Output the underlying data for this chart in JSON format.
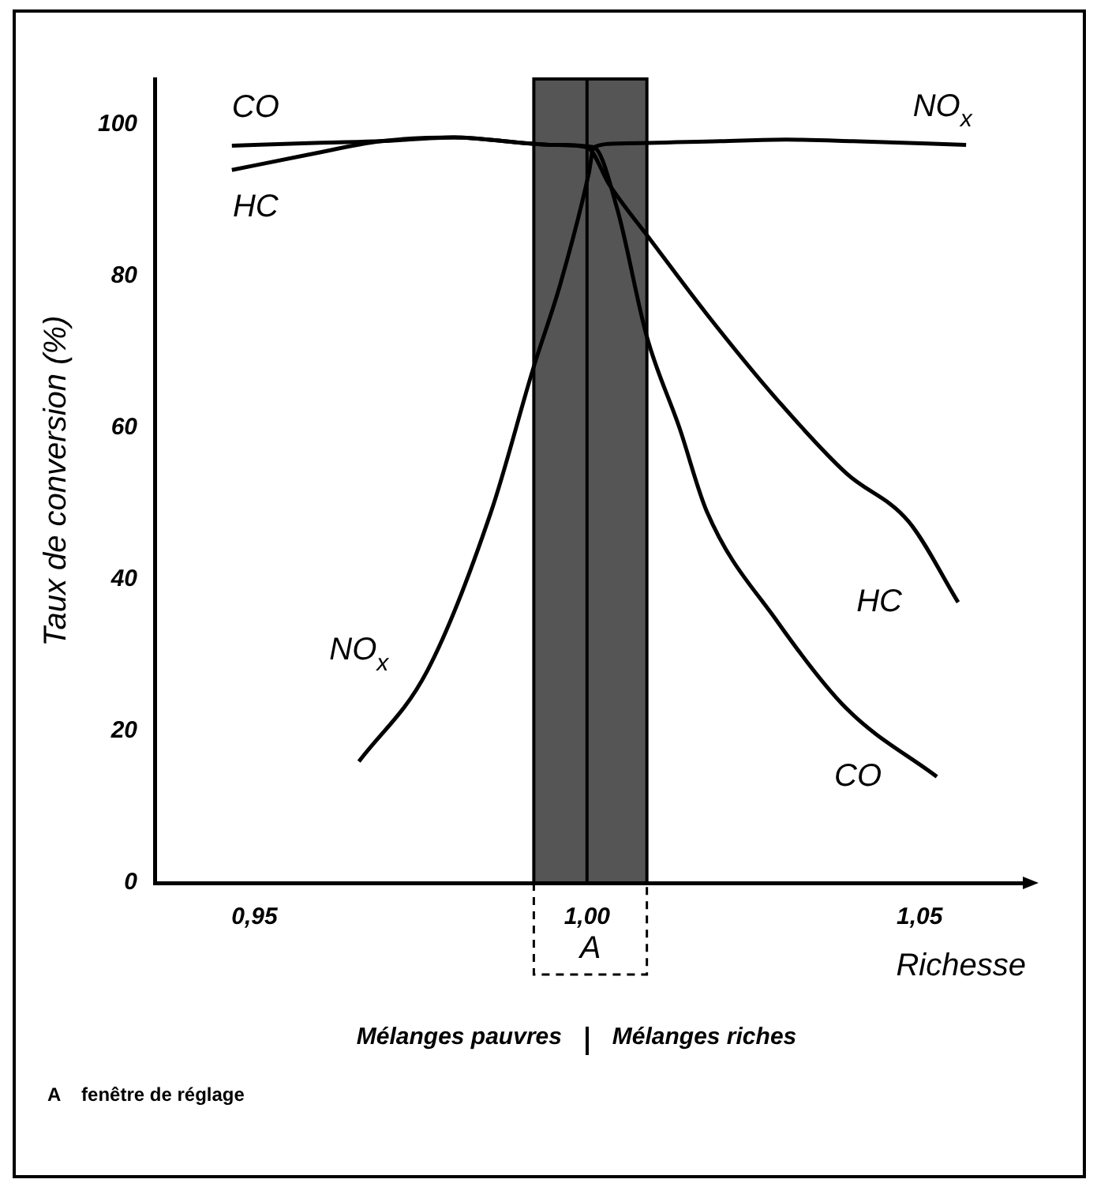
{
  "chart_data": {
    "type": "line",
    "xlabel": "Richesse",
    "ylabel": "Taux de conversion (%)",
    "xlim": [
      0.935,
      1.066
    ],
    "ylim": [
      0,
      106
    ],
    "xticks": [
      {
        "value": 0.95,
        "label": "0,95"
      },
      {
        "value": 1.0,
        "label": "1,00"
      },
      {
        "value": 1.05,
        "label": "1,05"
      }
    ],
    "yticks": [
      0,
      20,
      40,
      60,
      80,
      100
    ],
    "grid": false,
    "legend": false,
    "marker": "none",
    "line_style": "solid",
    "series": [
      {
        "name": "CO",
        "color": "#000000",
        "x": [
          0.9466,
          0.96,
          0.969,
          0.98,
          0.99,
          0.995,
          1.001,
          1.0045,
          1.009,
          1.0139,
          1.018,
          1.0285,
          1.039,
          1.0526
        ],
        "values": [
          97.2,
          97.6,
          97.8,
          98.3,
          97.6,
          97.3,
          97,
          89,
          72,
          60,
          49,
          34.6,
          23,
          14
        ]
      },
      {
        "name": "HC",
        "color": "#000000",
        "x": [
          0.9466,
          0.958,
          0.969,
          0.98,
          0.99,
          0.995,
          1.0,
          1.0034,
          1.0097,
          1.018,
          1.0285,
          1.039,
          1.0484,
          1.0558
        ],
        "values": [
          94,
          96,
          97.8,
          98.3,
          97.6,
          97.3,
          97,
          92,
          84.6,
          75,
          63.8,
          54,
          47.6,
          37
        ]
      },
      {
        "name": "NO$_{x}$",
        "color": "#000000",
        "x": [
          0.9657,
          0.976,
          0.9856,
          0.9919,
          0.996,
          1.0003,
          1.001,
          1.005,
          1.02,
          1.03,
          1.04,
          1.057
        ],
        "values": [
          16,
          28,
          49,
          67.8,
          79,
          93.7,
          97,
          97.5,
          97.8,
          98,
          97.8,
          97.3
        ]
      }
    ],
    "bands": [
      {
        "axis": "x",
        "from": 0.992,
        "to": 1.009,
        "label": "A",
        "color": "#555555"
      }
    ],
    "ref_lines": [
      {
        "axis": "x",
        "value": 1.0
      }
    ],
    "annotations": [
      "Mélanges pauvres",
      "Mélanges riches",
      "A    fenêtre de réglage"
    ]
  }
}
